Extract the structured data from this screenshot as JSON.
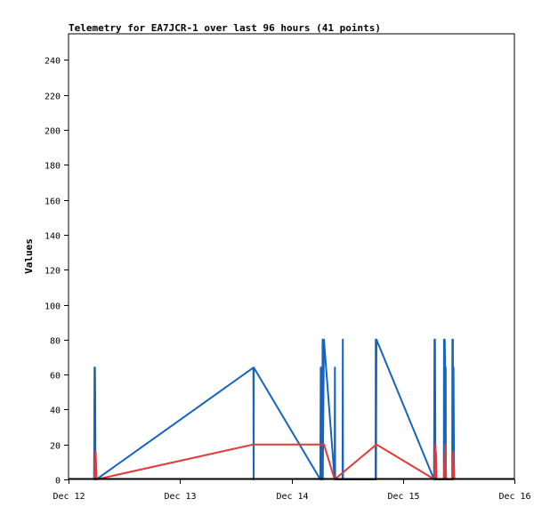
{
  "chart_data": {
    "type": "line",
    "title": "Telemetry for EA7JCR-1 over last 96 hours (41 points)",
    "xlabel": "",
    "ylabel": "Values",
    "xlim": [
      0,
      96
    ],
    "ylim": [
      0,
      255
    ],
    "yticks": [
      0,
      20,
      40,
      60,
      80,
      100,
      120,
      140,
      160,
      180,
      200,
      220,
      240
    ],
    "xticks": [
      {
        "t": 0,
        "label": "Dec 12"
      },
      {
        "t": 24,
        "label": "Dec 13"
      },
      {
        "t": 48,
        "label": "Dec 14"
      },
      {
        "t": 72,
        "label": "Dec 15"
      },
      {
        "t": 96,
        "label": "Dec 16"
      }
    ],
    "grid": false,
    "series": [
      {
        "color": "#1565C0",
        "points": [
          [
            5.5,
            0
          ],
          [
            5.55,
            32
          ],
          [
            5.6,
            64
          ],
          [
            5.65,
            0
          ],
          [
            5.7,
            64
          ],
          [
            5.75,
            48
          ],
          [
            5.8,
            0
          ],
          [
            5.85,
            16
          ],
          [
            6.0,
            0
          ],
          [
            39.8,
            64
          ],
          [
            39.85,
            0
          ],
          [
            39.9,
            64
          ],
          [
            54.2,
            0
          ],
          [
            54.3,
            64
          ],
          [
            54.4,
            0
          ],
          [
            54.5,
            64
          ],
          [
            54.6,
            0
          ],
          [
            54.7,
            80
          ],
          [
            54.75,
            0
          ],
          [
            55.0,
            80
          ],
          [
            57.3,
            0
          ],
          [
            57.35,
            64
          ],
          [
            57.4,
            0
          ],
          [
            59.0,
            0
          ],
          [
            59.05,
            80
          ],
          [
            59.1,
            0
          ],
          [
            66.1,
            0
          ],
          [
            66.15,
            80
          ],
          [
            66.2,
            0
          ],
          [
            66.3,
            80
          ],
          [
            78.7,
            0
          ],
          [
            78.8,
            80
          ],
          [
            78.85,
            0
          ],
          [
            78.9,
            80
          ],
          [
            79.0,
            0
          ],
          [
            79.1,
            16
          ],
          [
            79.2,
            0
          ],
          [
            80.8,
            0
          ],
          [
            80.85,
            80
          ],
          [
            80.9,
            0
          ],
          [
            81.0,
            80
          ],
          [
            81.1,
            64
          ],
          [
            81.15,
            0
          ],
          [
            81.2,
            64
          ],
          [
            81.25,
            0
          ],
          [
            82.6,
            0
          ],
          [
            82.65,
            80
          ],
          [
            82.7,
            0
          ],
          [
            82.75,
            80
          ],
          [
            82.8,
            16
          ],
          [
            82.85,
            0
          ],
          [
            82.9,
            64
          ],
          [
            82.95,
            32
          ],
          [
            83.0,
            0
          ]
        ]
      },
      {
        "color": "#E53935",
        "points": [
          [
            5.5,
            0
          ],
          [
            5.6,
            0
          ],
          [
            5.8,
            16
          ],
          [
            6.0,
            0
          ],
          [
            39.8,
            20
          ],
          [
            54.7,
            20
          ],
          [
            55.0,
            20
          ],
          [
            57.3,
            0
          ],
          [
            66.3,
            20
          ],
          [
            78.8,
            0
          ],
          [
            79.0,
            20
          ],
          [
            79.2,
            0
          ],
          [
            80.8,
            0
          ],
          [
            81.1,
            20
          ],
          [
            81.3,
            0
          ],
          [
            82.6,
            0
          ],
          [
            82.8,
            16
          ],
          [
            83.0,
            0
          ]
        ]
      }
    ]
  }
}
